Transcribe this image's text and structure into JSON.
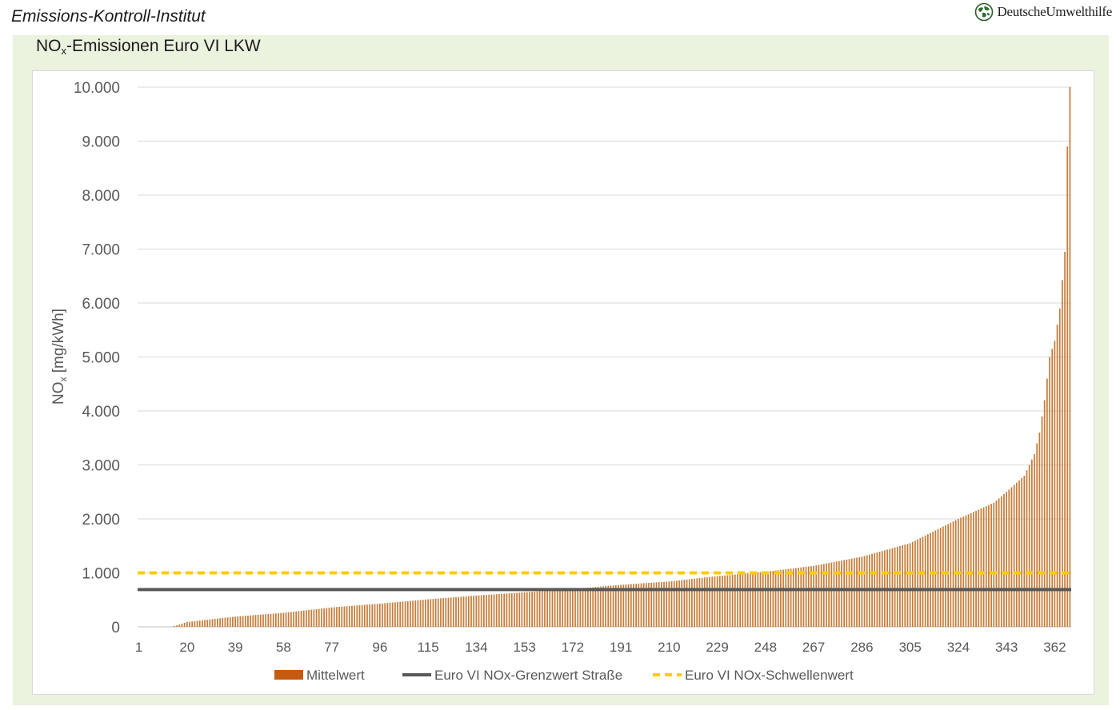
{
  "header": {
    "institute": "Emissions-Kontroll-Institut",
    "logo_text": "DeutscheUmwelthilfe"
  },
  "chart_title": {
    "main": "NO",
    "sub": "x",
    "rest": "-Emissionen Euro VI LKW"
  },
  "chart_data": {
    "type": "bar",
    "title": "NOx-Emissionen Euro VI LKW",
    "ylabel_main": "NO",
    "ylabel_sub": "x",
    "ylabel_rest": " [mg/kWh]",
    "ylim": [
      0,
      10000
    ],
    "y_ticks": [
      "0",
      "1.000",
      "2.000",
      "3.000",
      "4.000",
      "5.000",
      "6.000",
      "7.000",
      "8.000",
      "9.000",
      "10.000"
    ],
    "x_range": [
      1,
      368
    ],
    "x_ticks": [
      "1",
      "20",
      "39",
      "58",
      "77",
      "96",
      "115",
      "134",
      "153",
      "172",
      "191",
      "210",
      "229",
      "248",
      "267",
      "286",
      "305",
      "324",
      "343",
      "362"
    ],
    "bar_count": 368,
    "value_curve_x": [
      1,
      14,
      20,
      39,
      58,
      77,
      96,
      115,
      134,
      153,
      172,
      191,
      210,
      229,
      248,
      267,
      286,
      305,
      324,
      338,
      343,
      350,
      354,
      356,
      358,
      360,
      362,
      364,
      366,
      367,
      368
    ],
    "value_curve_y": [
      0,
      0,
      90,
      190,
      260,
      360,
      430,
      510,
      580,
      640,
      700,
      780,
      840,
      940,
      1020,
      1130,
      1300,
      1550,
      2000,
      2300,
      2500,
      2800,
      3200,
      3600,
      4200,
      5000,
      5300,
      5900,
      6950,
      8900,
      10000
    ],
    "reference_lines": [
      {
        "name": "Euro VI NOx-Grenzwert Straße",
        "value": 690,
        "color": "#595959",
        "style": "solid"
      },
      {
        "name": "Euro VI NOx-Schwellenwert",
        "value": 1000,
        "color": "#ffcc00",
        "style": "dashed"
      }
    ],
    "series": [
      {
        "name": "Mittelwert",
        "color": "#c77d3a",
        "legend_color": "#c55a11"
      }
    ],
    "grid": true,
    "legend_position": "bottom"
  }
}
